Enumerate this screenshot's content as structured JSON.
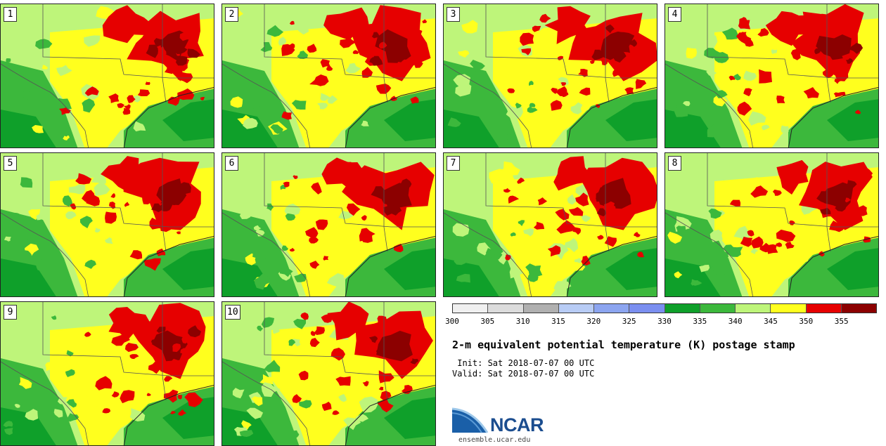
{
  "panels": [
    {
      "label": "1"
    },
    {
      "label": "2"
    },
    {
      "label": "3"
    },
    {
      "label": "4"
    },
    {
      "label": "5"
    },
    {
      "label": "6"
    },
    {
      "label": "7"
    },
    {
      "label": "8"
    },
    {
      "label": "9"
    },
    {
      "label": "10"
    }
  ],
  "colorbar": {
    "colors": [
      "#f0f0f0",
      "#dcdcdc",
      "#b0b0b0",
      "#b8ccf5",
      "#8ca5f0",
      "#7b8ff0",
      "#0fa02a",
      "#3cb83c",
      "#bef57a",
      "#ffff1e",
      "#e60000",
      "#8c0000"
    ],
    "ticks": [
      "300",
      "305",
      "310",
      "315",
      "320",
      "325",
      "330",
      "335",
      "340",
      "345",
      "350",
      "355"
    ]
  },
  "title": "2-m equivalent potential temperature (K) postage stamp",
  "init": " Init: Sat 2018-07-07 00 UTC",
  "valid": "Valid: Sat 2018-07-07 00 UTC",
  "logo": {
    "name": "NCAR",
    "site": "ensemble.ucar.edu"
  }
}
